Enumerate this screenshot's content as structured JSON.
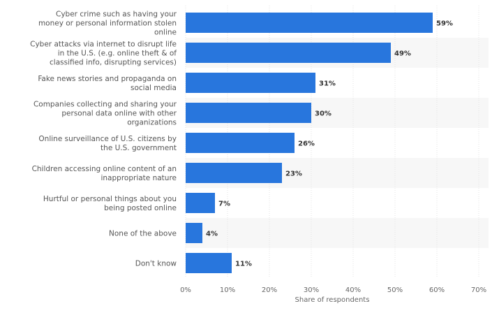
{
  "chart_data": {
    "type": "bar",
    "orientation": "horizontal",
    "categories": [
      "Cyber crime such as having your money or personal information stolen online",
      "Cyber attacks via internet to disrupt life in the U.S. (e.g. online theft & of classified info, disrupting services)",
      "Fake news stories and propaganda on social media",
      "Companies collecting and sharing your personal data online with other organizations",
      "Online surveillance of U.S. citizens by the U.S. government",
      "Children accessing online content of an inappropriate nature",
      "Hurtful or personal things about you being posted online",
      "None of the above",
      "Don't know"
    ],
    "category_lines": [
      [
        "Cyber crime such as having your",
        "money or personal information stolen",
        "online"
      ],
      [
        "Cyber attacks via internet to disrupt life",
        "in the U.S. (e.g. online theft & of",
        "classified info, disrupting services)"
      ],
      [
        "Fake news stories and propaganda on",
        "social media"
      ],
      [
        "Companies collecting and sharing your",
        "personal data online with other",
        "organizations"
      ],
      [
        "Online surveillance of U.S. citizens by",
        "the U.S. government"
      ],
      [
        "Children accessing online content of an",
        "inappropriate nature"
      ],
      [
        "Hurtful or personal things about you",
        "being posted online"
      ],
      [
        "None of the above"
      ],
      [
        "Don't know"
      ]
    ],
    "values": [
      59,
      49,
      31,
      30,
      26,
      23,
      7,
      4,
      11
    ],
    "data_labels": [
      "59%",
      "49%",
      "31%",
      "30%",
      "26%",
      "23%",
      "7%",
      "4%",
      "11%"
    ],
    "xlabel": "Share of respondents",
    "ylabel": "",
    "xlim": [
      0,
      70
    ],
    "ticks": [
      0,
      10,
      20,
      30,
      40,
      50,
      60,
      70
    ],
    "tick_labels": [
      "0%",
      "10%",
      "20%",
      "30%",
      "40%",
      "50%",
      "60%",
      "70%"
    ],
    "grid": true,
    "bar_color": "#2876dd",
    "band_color": "#f7f7f7",
    "grid_color": "#e3e3e3"
  }
}
